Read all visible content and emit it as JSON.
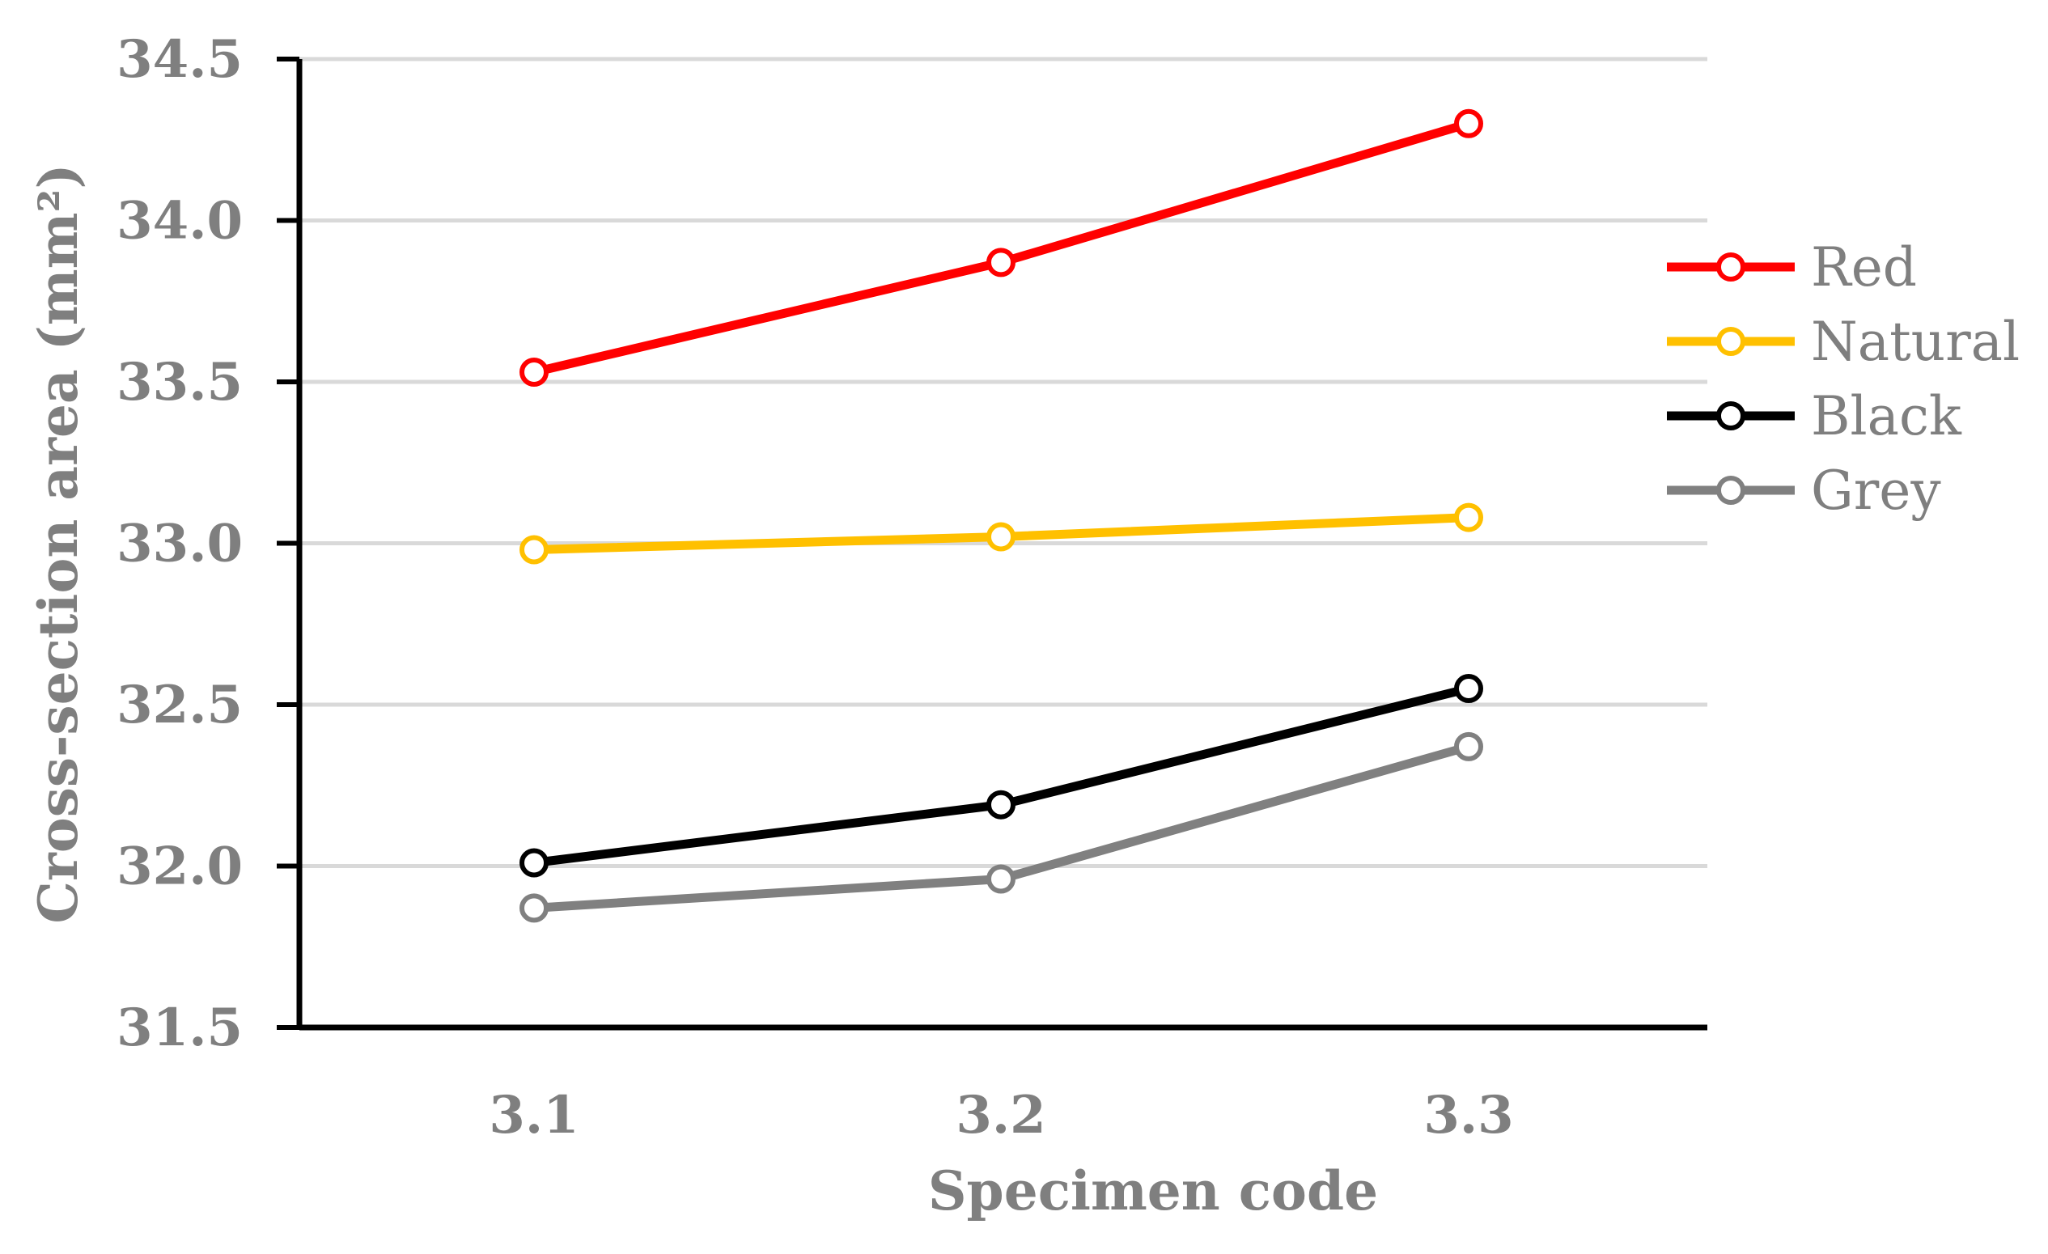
{
  "chart_data": {
    "type": "line",
    "categories": [
      "3.1",
      "3.2",
      "3.3"
    ],
    "series": [
      {
        "name": "Red",
        "color": "#ff0000",
        "values": [
          33.53,
          33.87,
          34.3
        ]
      },
      {
        "name": "Natural",
        "color": "#ffc000",
        "values": [
          32.98,
          33.02,
          33.08
        ]
      },
      {
        "name": "Black",
        "color": "#000000",
        "values": [
          32.01,
          32.19,
          32.55
        ]
      },
      {
        "name": "Grey",
        "color": "#808080",
        "values": [
          31.87,
          31.96,
          32.37
        ]
      }
    ],
    "xlabel": "Specimen code",
    "ylabel": "Cross-section area (mm²)",
    "ylim": [
      31.5,
      34.5
    ],
    "yticks": [
      "31.5",
      "32.0",
      "32.5",
      "33.0",
      "33.5",
      "34.0",
      "34.5"
    ],
    "grid": true,
    "legend_position": "right",
    "marker": "open-circle"
  }
}
